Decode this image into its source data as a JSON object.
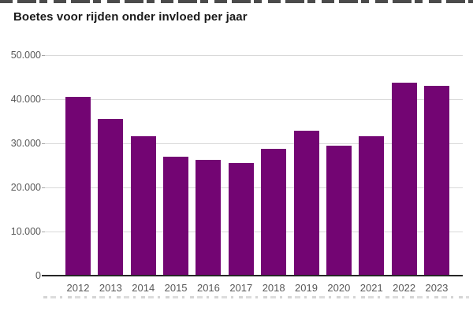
{
  "page": {
    "title": "Boetes voor rijden onder invloed per jaar"
  },
  "chart_data": {
    "type": "bar",
    "title": "Boetes voor rijden onder invloed per jaar",
    "categories": [
      "2012",
      "2013",
      "2014",
      "2015",
      "2016",
      "2017",
      "2018",
      "2019",
      "2020",
      "2021",
      "2022",
      "2023"
    ],
    "values": [
      40300,
      35400,
      31400,
      26700,
      26000,
      25400,
      28500,
      32600,
      29200,
      31500,
      43500,
      42800
    ],
    "xlabel": "",
    "ylabel": "",
    "ylim": [
      0,
      50000
    ],
    "ytick_step": 10000,
    "ytick_labels": [
      "0",
      "10.000",
      "20.000",
      "30.000",
      "40.000",
      "50.000"
    ],
    "grid": "horizontal-light",
    "legend": "none",
    "colors": {
      "bar": "#730573",
      "axis": "#262626",
      "gridline": "#d9d9d9",
      "tick": "#a6a6a6",
      "labels": "#595959",
      "title": "#1a1a1a",
      "background": "#ffffff"
    }
  }
}
